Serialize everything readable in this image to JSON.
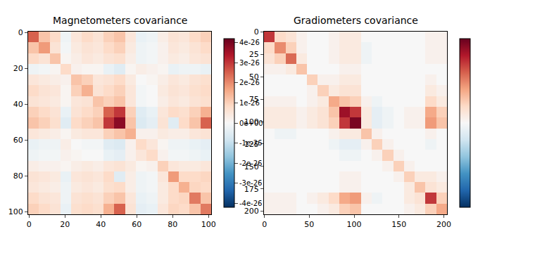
{
  "chart_data": [
    {
      "type": "heatmap",
      "title": "Magnetometers covariance",
      "x": [
        2.5,
        8.5,
        14.5,
        20.5,
        26.5,
        32.5,
        38.5,
        44.5,
        50.5,
        56.5,
        62.5,
        68.5,
        74.5,
        80.5,
        86.5,
        92.5,
        98.5
      ],
      "y": [
        2.5,
        8.5,
        14.5,
        20.5,
        26.5,
        32.5,
        38.5,
        44.5,
        50.5,
        56.5,
        62.5,
        68.5,
        74.5,
        80.5,
        86.5,
        92.5,
        98.5
      ],
      "z": [
        [
          2.5e-26,
          1.2e-26,
          8e-27,
          -2e-27,
          5e-27,
          8e-27,
          6e-27,
          1e-26,
          1.2e-26,
          5e-27,
          -3e-27,
          -2e-27,
          3e-27,
          6e-27,
          5e-27,
          8e-27,
          1e-26
        ],
        [
          1.2e-26,
          1.8e-26,
          6e-27,
          -1e-27,
          4e-27,
          6e-27,
          5e-27,
          8e-27,
          1e-26,
          4e-27,
          -2e-27,
          -1e-27,
          2e-27,
          5e-27,
          4e-27,
          6e-27,
          8e-27
        ],
        [
          8e-27,
          6e-27,
          1.2e-26,
          1e-27,
          3e-27,
          5e-27,
          4e-27,
          6e-27,
          7e-27,
          3e-27,
          -2e-27,
          -1e-27,
          2e-27,
          4e-27,
          3e-27,
          5e-27,
          6e-27
        ],
        [
          -2e-27,
          -1e-27,
          1e-27,
          8e-27,
          2e-27,
          1e-27,
          1e-27,
          -3e-27,
          -5e-27,
          1e-27,
          3e-27,
          2e-27,
          1e-27,
          -3e-27,
          -2e-27,
          -2e-27,
          -3e-27
        ],
        [
          5e-27,
          4e-27,
          3e-27,
          2e-27,
          1.2e-26,
          1e-26,
          5e-27,
          6e-27,
          8e-27,
          4e-27,
          0,
          1e-27,
          3e-27,
          5e-27,
          4e-27,
          6e-27,
          7e-27
        ],
        [
          8e-27,
          6e-27,
          5e-27,
          1e-27,
          1e-26,
          1.5e-26,
          6e-27,
          8e-27,
          1e-26,
          5e-27,
          -1e-27,
          0,
          4e-27,
          6e-27,
          5e-27,
          7e-27,
          8e-27
        ],
        [
          6e-27,
          5e-27,
          4e-27,
          1e-27,
          5e-27,
          6e-27,
          1.2e-26,
          1e-26,
          1.2e-26,
          5e-27,
          -1e-27,
          0,
          3e-27,
          5e-27,
          4e-27,
          6e-27,
          7e-27
        ],
        [
          1e-26,
          8e-27,
          6e-27,
          -3e-27,
          6e-27,
          8e-27,
          1e-26,
          2.5e-26,
          3e-26,
          1e-26,
          -5e-27,
          -3e-27,
          5e-27,
          8e-27,
          7e-27,
          1e-26,
          1.5e-26
        ],
        [
          1.2e-26,
          1e-26,
          7e-27,
          -5e-27,
          8e-27,
          1e-26,
          1.2e-26,
          3e-26,
          3.8e-26,
          1.2e-26,
          -6e-27,
          -4e-27,
          6e-27,
          -5e-27,
          8e-27,
          1.2e-26,
          2.5e-26
        ],
        [
          5e-27,
          4e-27,
          3e-27,
          1e-27,
          4e-27,
          5e-27,
          5e-27,
          1e-26,
          1.2e-26,
          1.5e-26,
          2e-27,
          2e-27,
          4e-27,
          3e-27,
          3e-27,
          5e-27,
          6e-27
        ],
        [
          -3e-27,
          -2e-27,
          -2e-27,
          3e-27,
          0,
          -1e-27,
          -1e-27,
          -5e-27,
          -6e-27,
          2e-27,
          8e-27,
          5e-27,
          1e-27,
          -2e-27,
          -2e-27,
          -3e-27,
          -4e-27
        ],
        [
          -2e-27,
          -1e-27,
          -1e-27,
          2e-27,
          1e-27,
          0,
          0,
          -3e-27,
          -4e-27,
          2e-27,
          5e-27,
          8e-27,
          2e-27,
          -1e-27,
          -1e-27,
          -2e-27,
          -3e-27
        ],
        [
          3e-27,
          2e-27,
          2e-27,
          1e-27,
          3e-27,
          4e-27,
          3e-27,
          5e-27,
          6e-27,
          4e-27,
          1e-27,
          2e-27,
          1e-26,
          5e-27,
          4e-27,
          4e-27,
          5e-27
        ],
        [
          6e-27,
          5e-27,
          4e-27,
          -3e-27,
          5e-27,
          6e-27,
          5e-27,
          8e-27,
          -5e-27,
          3e-27,
          -2e-27,
          -1e-27,
          5e-27,
          1.8e-26,
          8e-27,
          8e-27,
          9e-27
        ],
        [
          5e-27,
          4e-27,
          3e-27,
          -2e-27,
          4e-27,
          5e-27,
          4e-27,
          7e-27,
          8e-27,
          3e-27,
          -2e-27,
          -1e-27,
          4e-27,
          8e-27,
          1.5e-26,
          9e-27,
          8e-27
        ],
        [
          8e-27,
          6e-27,
          5e-27,
          -2e-27,
          6e-27,
          7e-27,
          6e-27,
          1e-26,
          1.2e-26,
          5e-27,
          -3e-27,
          -2e-27,
          4e-27,
          8e-27,
          9e-27,
          2.2e-26,
          1.2e-26
        ],
        [
          1e-26,
          8e-27,
          6e-27,
          -3e-27,
          7e-27,
          8e-27,
          7e-27,
          1.5e-26,
          2.5e-26,
          6e-27,
          -4e-27,
          -3e-27,
          5e-27,
          9e-27,
          8e-27,
          1.2e-26,
          2.2e-26
        ]
      ],
      "xlim": [
        -0.5,
        101.5
      ],
      "ylim": [
        101.5,
        -0.5
      ],
      "xticks": [
        0,
        20,
        40,
        60,
        80,
        100
      ],
      "yticks": [
        0,
        20,
        40,
        60,
        80,
        100
      ],
      "colorbar": {
        "range": [
          -4.2e-26,
          4.2e-26
        ],
        "ticks": [
          {
            "value": -4e-26,
            "label": "-4e-26"
          },
          {
            "value": -3e-26,
            "label": "-3e-26"
          },
          {
            "value": -2e-26,
            "label": "-2e-26"
          },
          {
            "value": -1e-26,
            "label": "-1e-26"
          },
          {
            "value": 0,
            "label": "0e+00"
          },
          {
            "value": 1e-26,
            "label": "1e-26"
          },
          {
            "value": 2e-26,
            "label": "2e-26"
          },
          {
            "value": 3e-26,
            "label": "3e-26"
          },
          {
            "value": 4e-26,
            "label": "4e-26"
          }
        ]
      }
    },
    {
      "type": "heatmap",
      "title": "Gradiometers covariance",
      "x": [
        5.5,
        17.5,
        29.5,
        41.5,
        53.5,
        65.5,
        77.5,
        89.5,
        101.5,
        113.5,
        125.5,
        137.5,
        149.5,
        161.5,
        173.5,
        185.5,
        197.5
      ],
      "y": [
        5.5,
        17.5,
        29.5,
        41.5,
        53.5,
        65.5,
        77.5,
        89.5,
        101.5,
        113.5,
        125.5,
        137.5,
        149.5,
        161.5,
        173.5,
        185.5,
        197.5
      ],
      "z": [
        [
          1.5e-24,
          4e-25,
          3e-25,
          1e-25,
          0,
          0,
          1e-25,
          2e-25,
          2e-25,
          0,
          0,
          0,
          0,
          0,
          0,
          1e-25,
          1e-25
        ],
        [
          4e-25,
          1e-24,
          5e-25,
          1e-25,
          0,
          0,
          1e-25,
          2e-25,
          2e-25,
          -1e-25,
          0,
          0,
          0,
          0,
          0,
          1e-25,
          1e-25
        ],
        [
          3e-25,
          5e-25,
          1.2e-24,
          2e-25,
          0,
          0,
          1e-25,
          2e-25,
          2e-25,
          -1e-25,
          0,
          0,
          0,
          0,
          0,
          1e-25,
          1e-25
        ],
        [
          1e-25,
          1e-25,
          2e-25,
          6e-25,
          0,
          0,
          0,
          1e-25,
          1e-25,
          0,
          0,
          0,
          0,
          0,
          0,
          0,
          0
        ],
        [
          0,
          0,
          0,
          0,
          5e-25,
          1e-25,
          1e-25,
          2e-25,
          2e-25,
          0,
          0,
          0,
          0,
          0,
          0,
          1e-25,
          0
        ],
        [
          0,
          0,
          0,
          0,
          1e-25,
          5e-25,
          2e-25,
          3e-25,
          3e-25,
          0,
          0,
          0,
          0,
          0,
          0,
          2e-25,
          1e-25
        ],
        [
          1e-25,
          1e-25,
          1e-25,
          0,
          1e-25,
          2e-25,
          8e-25,
          6e-25,
          5e-25,
          1e-25,
          -1e-25,
          0,
          0,
          0,
          0,
          4e-25,
          2e-25
        ],
        [
          2e-25,
          2e-25,
          2e-25,
          1e-25,
          2e-25,
          3e-25,
          6e-25,
          1.8e-24,
          1.5e-24,
          2e-25,
          -2e-25,
          -1e-25,
          0,
          1e-25,
          1e-25,
          8e-25,
          5e-25
        ],
        [
          2e-25,
          2e-25,
          2e-25,
          1e-25,
          2e-25,
          3e-25,
          5e-25,
          1.5e-24,
          2e-24,
          2e-25,
          -2e-25,
          -1e-25,
          0,
          1e-25,
          1e-25,
          9e-25,
          6e-25
        ],
        [
          0,
          -1e-25,
          -1e-25,
          0,
          0,
          0,
          1e-25,
          2e-25,
          2e-25,
          6e-25,
          1e-25,
          0,
          0,
          0,
          0,
          1e-25,
          0
        ],
        [
          0,
          0,
          0,
          0,
          0,
          0,
          -1e-25,
          -2e-25,
          -2e-25,
          1e-25,
          5e-25,
          1e-25,
          0,
          0,
          0,
          -1e-25,
          0
        ],
        [
          0,
          0,
          0,
          0,
          0,
          0,
          0,
          -1e-25,
          -1e-25,
          0,
          1e-25,
          5e-25,
          1e-25,
          0,
          0,
          0,
          0
        ],
        [
          0,
          0,
          0,
          0,
          0,
          0,
          0,
          0,
          0,
          0,
          0,
          1e-25,
          5e-25,
          1e-25,
          0,
          0,
          0
        ],
        [
          0,
          0,
          0,
          0,
          0,
          0,
          0,
          1e-25,
          1e-25,
          0,
          0,
          0,
          1e-25,
          5e-25,
          2e-25,
          2e-25,
          1e-25
        ],
        [
          0,
          0,
          0,
          0,
          0,
          0,
          0,
          1e-25,
          1e-25,
          0,
          0,
          0,
          0,
          2e-25,
          6e-25,
          3e-25,
          2e-25
        ],
        [
          1e-25,
          1e-25,
          1e-25,
          0,
          1e-25,
          2e-25,
          4e-25,
          8e-25,
          9e-25,
          1e-25,
          -1e-25,
          0,
          0,
          2e-25,
          3e-25,
          1.5e-24,
          5e-25
        ],
        [
          1e-25,
          1e-25,
          1e-25,
          0,
          0,
          1e-25,
          2e-25,
          5e-25,
          6e-25,
          0,
          0,
          0,
          0,
          1e-25,
          2e-25,
          5e-25,
          8e-25
        ]
      ],
      "xlim": [
        -0.5,
        203.5
      ],
      "ylim": [
        203.5,
        -0.5
      ],
      "xticks": [
        0,
        50,
        100,
        150,
        200
      ],
      "yticks": [
        0,
        25,
        50,
        75,
        100,
        125,
        150,
        175,
        200
      ],
      "colorbar": {
        "range": [
          -2.1e-24,
          2.1e-24
        ]
      }
    }
  ]
}
